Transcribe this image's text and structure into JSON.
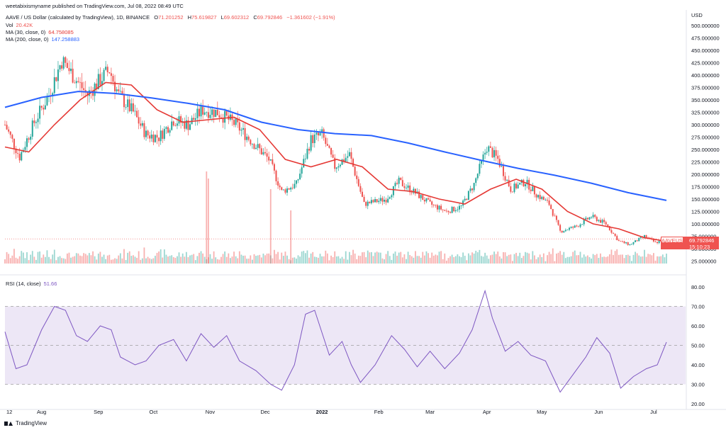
{
  "header": {
    "published": "weetabixismyname published on TradingView.com, Jul 08, 2022 08:49 UTC",
    "symbol_line": "AAVE / US Dollar (calculated by TradingView), 1D, BINANCE",
    "ohlc": {
      "o_label": "O",
      "o": "71.201252",
      "h_label": "H",
      "h": "75.619827",
      "l_label": "L",
      "l": "69.602312",
      "c_label": "C",
      "c": "69.792846",
      "chg": "−1.361602 (−1.91%)"
    },
    "vol_label": "Vol",
    "vol": "20.42K",
    "ma30_label": "MA (30, close, 0)",
    "ma30": "64.758085",
    "ma200_label": "MA (200, close, 0)",
    "ma200": "147.258883",
    "rsi_label": "RSI (14, close)",
    "rsi": "51.66"
  },
  "price_tag": {
    "symbol": "AAVEUSD",
    "price": "69.792846",
    "countdown": "15:10:23"
  },
  "footer": {
    "brand": "TradingView"
  },
  "colors": {
    "up": "#26a69a",
    "down": "#ef5350",
    "ma30": "#e53935",
    "ma200": "#2962ff",
    "rsi": "#7e57c2",
    "rsi_band": "#ede7f6"
  },
  "chart_data": [
    {
      "type": "candlestick",
      "title": "AAVE / US Dollar (calculated by TradingView), 1D, BINANCE",
      "currency": "USD",
      "y_ticks": [
        "500.000000",
        "475.000000",
        "450.000000",
        "425.000000",
        "400.000000",
        "375.000000",
        "350.000000",
        "325.000000",
        "300.000000",
        "275.000000",
        "250.000000",
        "225.000000",
        "200.000000",
        "175.000000",
        "150.000000",
        "125.000000",
        "100.000000",
        "75.000000",
        "50.000000",
        "25.000000"
      ],
      "ylim": [
        0,
        510
      ],
      "x_ticks": [
        "12",
        "Aug",
        "Sep",
        "Oct",
        "Nov",
        "Dec",
        "2022",
        "Feb",
        "Mar",
        "Apr",
        "May",
        "Jun",
        "Jul"
      ],
      "close_path": [
        {
          "date": "2021-07-12",
          "close": 300
        },
        {
          "date": "2021-07-20",
          "close": 235
        },
        {
          "date": "2021-07-28",
          "close": 305
        },
        {
          "date": "2021-08-05",
          "close": 360
        },
        {
          "date": "2021-08-12",
          "close": 430
        },
        {
          "date": "2021-08-18",
          "close": 400
        },
        {
          "date": "2021-08-26",
          "close": 360
        },
        {
          "date": "2021-09-03",
          "close": 395
        },
        {
          "date": "2021-09-07",
          "close": 410
        },
        {
          "date": "2021-09-12",
          "close": 360
        },
        {
          "date": "2021-09-20",
          "close": 325
        },
        {
          "date": "2021-09-27",
          "close": 280
        },
        {
          "date": "2021-10-04",
          "close": 275
        },
        {
          "date": "2021-10-12",
          "close": 310
        },
        {
          "date": "2021-10-20",
          "close": 300
        },
        {
          "date": "2021-10-28",
          "close": 330
        },
        {
          "date": "2021-11-05",
          "close": 325
        },
        {
          "date": "2021-11-15",
          "close": 300
        },
        {
          "date": "2021-11-24",
          "close": 265
        },
        {
          "date": "2021-12-03",
          "close": 230
        },
        {
          "date": "2021-12-10",
          "close": 165
        },
        {
          "date": "2021-12-18",
          "close": 180
        },
        {
          "date": "2021-12-26",
          "close": 270
        },
        {
          "date": "2022-01-01",
          "close": 280
        },
        {
          "date": "2022-01-08",
          "close": 215
        },
        {
          "date": "2022-01-16",
          "close": 240
        },
        {
          "date": "2022-01-24",
          "close": 140
        },
        {
          "date": "2022-02-05",
          "close": 150
        },
        {
          "date": "2022-02-12",
          "close": 185
        },
        {
          "date": "2022-02-20",
          "close": 165
        },
        {
          "date": "2022-03-01",
          "close": 140
        },
        {
          "date": "2022-03-10",
          "close": 125
        },
        {
          "date": "2022-03-18",
          "close": 135
        },
        {
          "date": "2022-03-25",
          "close": 180
        },
        {
          "date": "2022-04-01",
          "close": 255
        },
        {
          "date": "2022-04-07",
          "close": 230
        },
        {
          "date": "2022-04-14",
          "close": 170
        },
        {
          "date": "2022-04-22",
          "close": 185
        },
        {
          "date": "2022-04-28",
          "close": 160
        },
        {
          "date": "2022-05-05",
          "close": 140
        },
        {
          "date": "2022-05-11",
          "close": 85
        },
        {
          "date": "2022-05-20",
          "close": 95
        },
        {
          "date": "2022-05-28",
          "close": 115
        },
        {
          "date": "2022-06-05",
          "close": 100
        },
        {
          "date": "2022-06-12",
          "close": 65
        },
        {
          "date": "2022-06-18",
          "close": 58
        },
        {
          "date": "2022-06-26",
          "close": 75
        },
        {
          "date": "2022-07-02",
          "close": 62
        },
        {
          "date": "2022-07-08",
          "close": 69.79
        }
      ],
      "series": [
        {
          "name": "MA (30, close, 0)",
          "last": 64.758085,
          "points": [
            {
              "date": "2021-07-12",
              "v": 255
            },
            {
              "date": "2021-07-25",
              "v": 245
            },
            {
              "date": "2021-08-08",
              "v": 300
            },
            {
              "date": "2021-08-22",
              "v": 350
            },
            {
              "date": "2021-09-05",
              "v": 385
            },
            {
              "date": "2021-09-19",
              "v": 380
            },
            {
              "date": "2021-10-03",
              "v": 330
            },
            {
              "date": "2021-10-17",
              "v": 305
            },
            {
              "date": "2021-10-31",
              "v": 310
            },
            {
              "date": "2021-11-14",
              "v": 315
            },
            {
              "date": "2021-11-28",
              "v": 290
            },
            {
              "date": "2021-12-12",
              "v": 230
            },
            {
              "date": "2021-12-26",
              "v": 215
            },
            {
              "date": "2022-01-09",
              "v": 230
            },
            {
              "date": "2022-01-23",
              "v": 215
            },
            {
              "date": "2022-02-06",
              "v": 170
            },
            {
              "date": "2022-02-20",
              "v": 165
            },
            {
              "date": "2022-03-06",
              "v": 150
            },
            {
              "date": "2022-03-20",
              "v": 140
            },
            {
              "date": "2022-04-03",
              "v": 170
            },
            {
              "date": "2022-04-17",
              "v": 190
            },
            {
              "date": "2022-05-01",
              "v": 170
            },
            {
              "date": "2022-05-15",
              "v": 125
            },
            {
              "date": "2022-05-29",
              "v": 100
            },
            {
              "date": "2022-06-12",
              "v": 90
            },
            {
              "date": "2022-06-26",
              "v": 72
            },
            {
              "date": "2022-07-08",
              "v": 64.76
            }
          ]
        },
        {
          "name": "MA (200, close, 0)",
          "last": 147.258883,
          "points": [
            {
              "date": "2021-07-12",
              "v": 335
            },
            {
              "date": "2021-08-01",
              "v": 355
            },
            {
              "date": "2021-08-21",
              "v": 367
            },
            {
              "date": "2021-09-10",
              "v": 363
            },
            {
              "date": "2021-09-30",
              "v": 354
            },
            {
              "date": "2021-10-20",
              "v": 343
            },
            {
              "date": "2021-11-09",
              "v": 330
            },
            {
              "date": "2021-11-29",
              "v": 305
            },
            {
              "date": "2021-12-19",
              "v": 290
            },
            {
              "date": "2022-01-08",
              "v": 282
            },
            {
              "date": "2022-01-28",
              "v": 278
            },
            {
              "date": "2022-02-17",
              "v": 263
            },
            {
              "date": "2022-03-09",
              "v": 245
            },
            {
              "date": "2022-03-29",
              "v": 228
            },
            {
              "date": "2022-04-18",
              "v": 212
            },
            {
              "date": "2022-05-08",
              "v": 198
            },
            {
              "date": "2022-05-28",
              "v": 182
            },
            {
              "date": "2022-06-17",
              "v": 163
            },
            {
              "date": "2022-07-08",
              "v": 147.26
            }
          ]
        }
      ],
      "volume": {
        "name": "Vol",
        "last": "20.42K",
        "style": "histogram at bottom of price pane"
      }
    },
    {
      "type": "line",
      "title": "RSI (14, close)",
      "y_ticks": [
        "80.00",
        "70.00",
        "60.00",
        "50.00",
        "40.00",
        "30.00",
        "20.00"
      ],
      "ylim": [
        18,
        82
      ],
      "bands": [
        30,
        70
      ],
      "midline": 50,
      "series": [
        {
          "name": "RSI (14, close)",
          "last": 51.66,
          "points": [
            {
              "date": "2021-07-12",
              "v": 57
            },
            {
              "date": "2021-07-18",
              "v": 38
            },
            {
              "date": "2021-07-24",
              "v": 40
            },
            {
              "date": "2021-08-01",
              "v": 58
            },
            {
              "date": "2021-08-08",
              "v": 70
            },
            {
              "date": "2021-08-14",
              "v": 68
            },
            {
              "date": "2021-08-20",
              "v": 55
            },
            {
              "date": "2021-08-26",
              "v": 52
            },
            {
              "date": "2021-09-02",
              "v": 60
            },
            {
              "date": "2021-09-08",
              "v": 58
            },
            {
              "date": "2021-09-13",
              "v": 44
            },
            {
              "date": "2021-09-21",
              "v": 40
            },
            {
              "date": "2021-09-27",
              "v": 42
            },
            {
              "date": "2021-10-04",
              "v": 50
            },
            {
              "date": "2021-10-12",
              "v": 53
            },
            {
              "date": "2021-10-19",
              "v": 42
            },
            {
              "date": "2021-10-27",
              "v": 56
            },
            {
              "date": "2021-11-03",
              "v": 49
            },
            {
              "date": "2021-11-10",
              "v": 55
            },
            {
              "date": "2021-11-17",
              "v": 42
            },
            {
              "date": "2021-11-26",
              "v": 37
            },
            {
              "date": "2021-12-04",
              "v": 30
            },
            {
              "date": "2021-12-10",
              "v": 27
            },
            {
              "date": "2021-12-17",
              "v": 40
            },
            {
              "date": "2021-12-23",
              "v": 66
            },
            {
              "date": "2021-12-28",
              "v": 68
            },
            {
              "date": "2022-01-05",
              "v": 45
            },
            {
              "date": "2022-01-12",
              "v": 52
            },
            {
              "date": "2022-01-17",
              "v": 40
            },
            {
              "date": "2022-01-22",
              "v": 31
            },
            {
              "date": "2022-01-30",
              "v": 40
            },
            {
              "date": "2022-02-08",
              "v": 55
            },
            {
              "date": "2022-02-15",
              "v": 48
            },
            {
              "date": "2022-02-22",
              "v": 39
            },
            {
              "date": "2022-03-01",
              "v": 47
            },
            {
              "date": "2022-03-09",
              "v": 38
            },
            {
              "date": "2022-03-17",
              "v": 46
            },
            {
              "date": "2022-03-24",
              "v": 58
            },
            {
              "date": "2022-03-31",
              "v": 78
            },
            {
              "date": "2022-04-04",
              "v": 64
            },
            {
              "date": "2022-04-11",
              "v": 47
            },
            {
              "date": "2022-04-18",
              "v": 52
            },
            {
              "date": "2022-04-25",
              "v": 45
            },
            {
              "date": "2022-05-03",
              "v": 42
            },
            {
              "date": "2022-05-11",
              "v": 26
            },
            {
              "date": "2022-05-18",
              "v": 35
            },
            {
              "date": "2022-05-25",
              "v": 44
            },
            {
              "date": "2022-05-31",
              "v": 54
            },
            {
              "date": "2022-06-07",
              "v": 46
            },
            {
              "date": "2022-06-13",
              "v": 28
            },
            {
              "date": "2022-06-20",
              "v": 34
            },
            {
              "date": "2022-06-27",
              "v": 38
            },
            {
              "date": "2022-07-03",
              "v": 40
            },
            {
              "date": "2022-07-08",
              "v": 51.66
            }
          ]
        }
      ]
    }
  ]
}
